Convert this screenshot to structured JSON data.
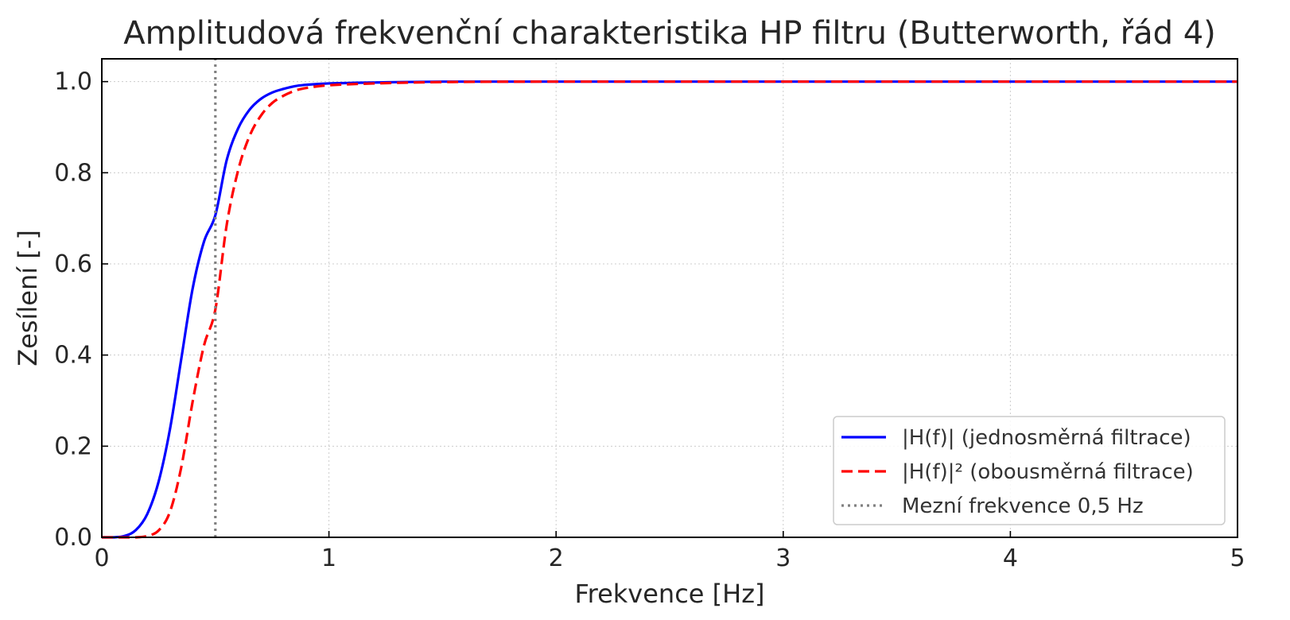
{
  "chart_data": {
    "type": "line",
    "title": "Amplitudová frekvenční charakteristika HP filtru (Butterworth, řád 4)",
    "xlabel": "Frekvence [Hz]",
    "ylabel": "Zesílení [-]",
    "xlim": [
      0,
      5
    ],
    "ylim": [
      0,
      1.05
    ],
    "x_ticks": [
      0,
      1,
      2,
      3,
      4,
      5
    ],
    "x_tick_labels": [
      "0",
      "1",
      "2",
      "3",
      "4",
      "5"
    ],
    "y_ticks": [
      0,
      0.2,
      0.4,
      0.6,
      0.8,
      1.0
    ],
    "y_tick_labels": [
      "0.0",
      "0.2",
      "0.4",
      "0.6",
      "0.8",
      "1.0"
    ],
    "grid": true,
    "legend_position": "bottom-right",
    "series": [
      {
        "name": "|H(f)| (jednosměrná filtrace)",
        "color": "#0000ff",
        "style": "solid",
        "x": [
          0,
          0.05,
          0.1,
          0.15,
          0.2,
          0.25,
          0.3,
          0.35,
          0.4,
          0.45,
          0.5,
          0.55,
          0.6,
          0.65,
          0.7,
          0.75,
          0.8,
          0.85,
          0.9,
          1.0,
          1.2,
          1.5,
          2,
          3,
          4,
          5
        ],
        "y": [
          0,
          0.0,
          0.003,
          0.016,
          0.051,
          0.122,
          0.237,
          0.392,
          0.546,
          0.649,
          0.707,
          0.828,
          0.897,
          0.938,
          0.962,
          0.976,
          0.984,
          0.99,
          0.993,
          0.996,
          0.998,
          1.0,
          1.0,
          1.0,
          1.0,
          1.0
        ]
      },
      {
        "name": "|H(f)|² (obousměrná filtrace)",
        "color": "#ff0000",
        "style": "dashed",
        "x": [
          0,
          0.05,
          0.1,
          0.15,
          0.2,
          0.25,
          0.3,
          0.35,
          0.4,
          0.45,
          0.5,
          0.55,
          0.6,
          0.65,
          0.7,
          0.75,
          0.8,
          0.85,
          0.9,
          1.0,
          1.2,
          1.5,
          2,
          3,
          4,
          5
        ],
        "y": [
          0,
          0.0,
          0.0,
          0.0,
          0.003,
          0.015,
          0.056,
          0.154,
          0.298,
          0.421,
          0.5,
          0.686,
          0.805,
          0.88,
          0.925,
          0.953,
          0.969,
          0.98,
          0.986,
          0.992,
          0.996,
          0.999,
          1.0,
          1.0,
          1.0,
          1.0
        ]
      },
      {
        "name": "Mezní frekvence 0,5 Hz",
        "color": "#808080",
        "style": "dotted",
        "x": [
          0.5,
          0.5
        ],
        "y": [
          0,
          1.05
        ]
      }
    ]
  }
}
